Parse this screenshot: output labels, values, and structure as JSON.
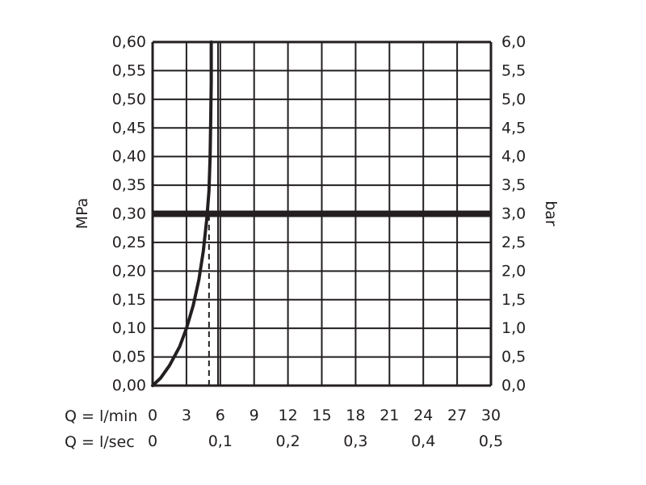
{
  "chart_data": {
    "type": "line",
    "colors": {
      "ink": "#231f20",
      "grid": "#231f20",
      "background": "#ffffff"
    },
    "grid": true,
    "y_left": {
      "label": "MPa",
      "min": 0,
      "max": 0.6,
      "step": 0.05,
      "ticks": [
        "0,00",
        "0,05",
        "0,10",
        "0,15",
        "0,20",
        "0,25",
        "0,30",
        "0,35",
        "0,40",
        "0,45",
        "0,50",
        "0,55",
        "0,60"
      ]
    },
    "y_right": {
      "label": "bar",
      "min": 0,
      "max": 6,
      "step": 0.5,
      "ticks": [
        "0,0",
        "0,5",
        "1,0",
        "1,5",
        "2,0",
        "2,5",
        "3,0",
        "3,5",
        "4,0",
        "4,5",
        "5,0",
        "5,5",
        "6,0"
      ]
    },
    "x_primary": {
      "label": "Q = l/min",
      "min": 0,
      "max": 30,
      "step": 3,
      "ticks": [
        "0",
        "3",
        "6",
        "9",
        "12",
        "15",
        "18",
        "21",
        "24",
        "27",
        "30"
      ]
    },
    "x_secondary": {
      "label": "Q = l/sec",
      "ticks": [
        {
          "value_lmin": 0,
          "label": "0"
        },
        {
          "value_lmin": 6,
          "label": "0,1"
        },
        {
          "value_lmin": 12,
          "label": "0,2"
        },
        {
          "value_lmin": 18,
          "label": "0,3"
        },
        {
          "value_lmin": 24,
          "label": "0,4"
        },
        {
          "value_lmin": 30,
          "label": "0,5"
        }
      ]
    },
    "flow_curve": {
      "x": [
        0,
        0.7,
        1.5,
        2.4,
        3.0,
        3.6,
        4.1,
        4.5,
        4.8,
        5.0,
        5.1,
        5.15,
        5.2,
        5.2
      ],
      "y": [
        0,
        0.013,
        0.035,
        0.068,
        0.1,
        0.14,
        0.185,
        0.235,
        0.29,
        0.34,
        0.4,
        0.46,
        0.53,
        0.6
      ]
    },
    "marked_pressure": {
      "y": 0.3
    },
    "marked_flow": {
      "x": 5.0,
      "y_from": 0,
      "y_to": 0.3
    },
    "reference_flow": {
      "x": 5.8
    }
  }
}
